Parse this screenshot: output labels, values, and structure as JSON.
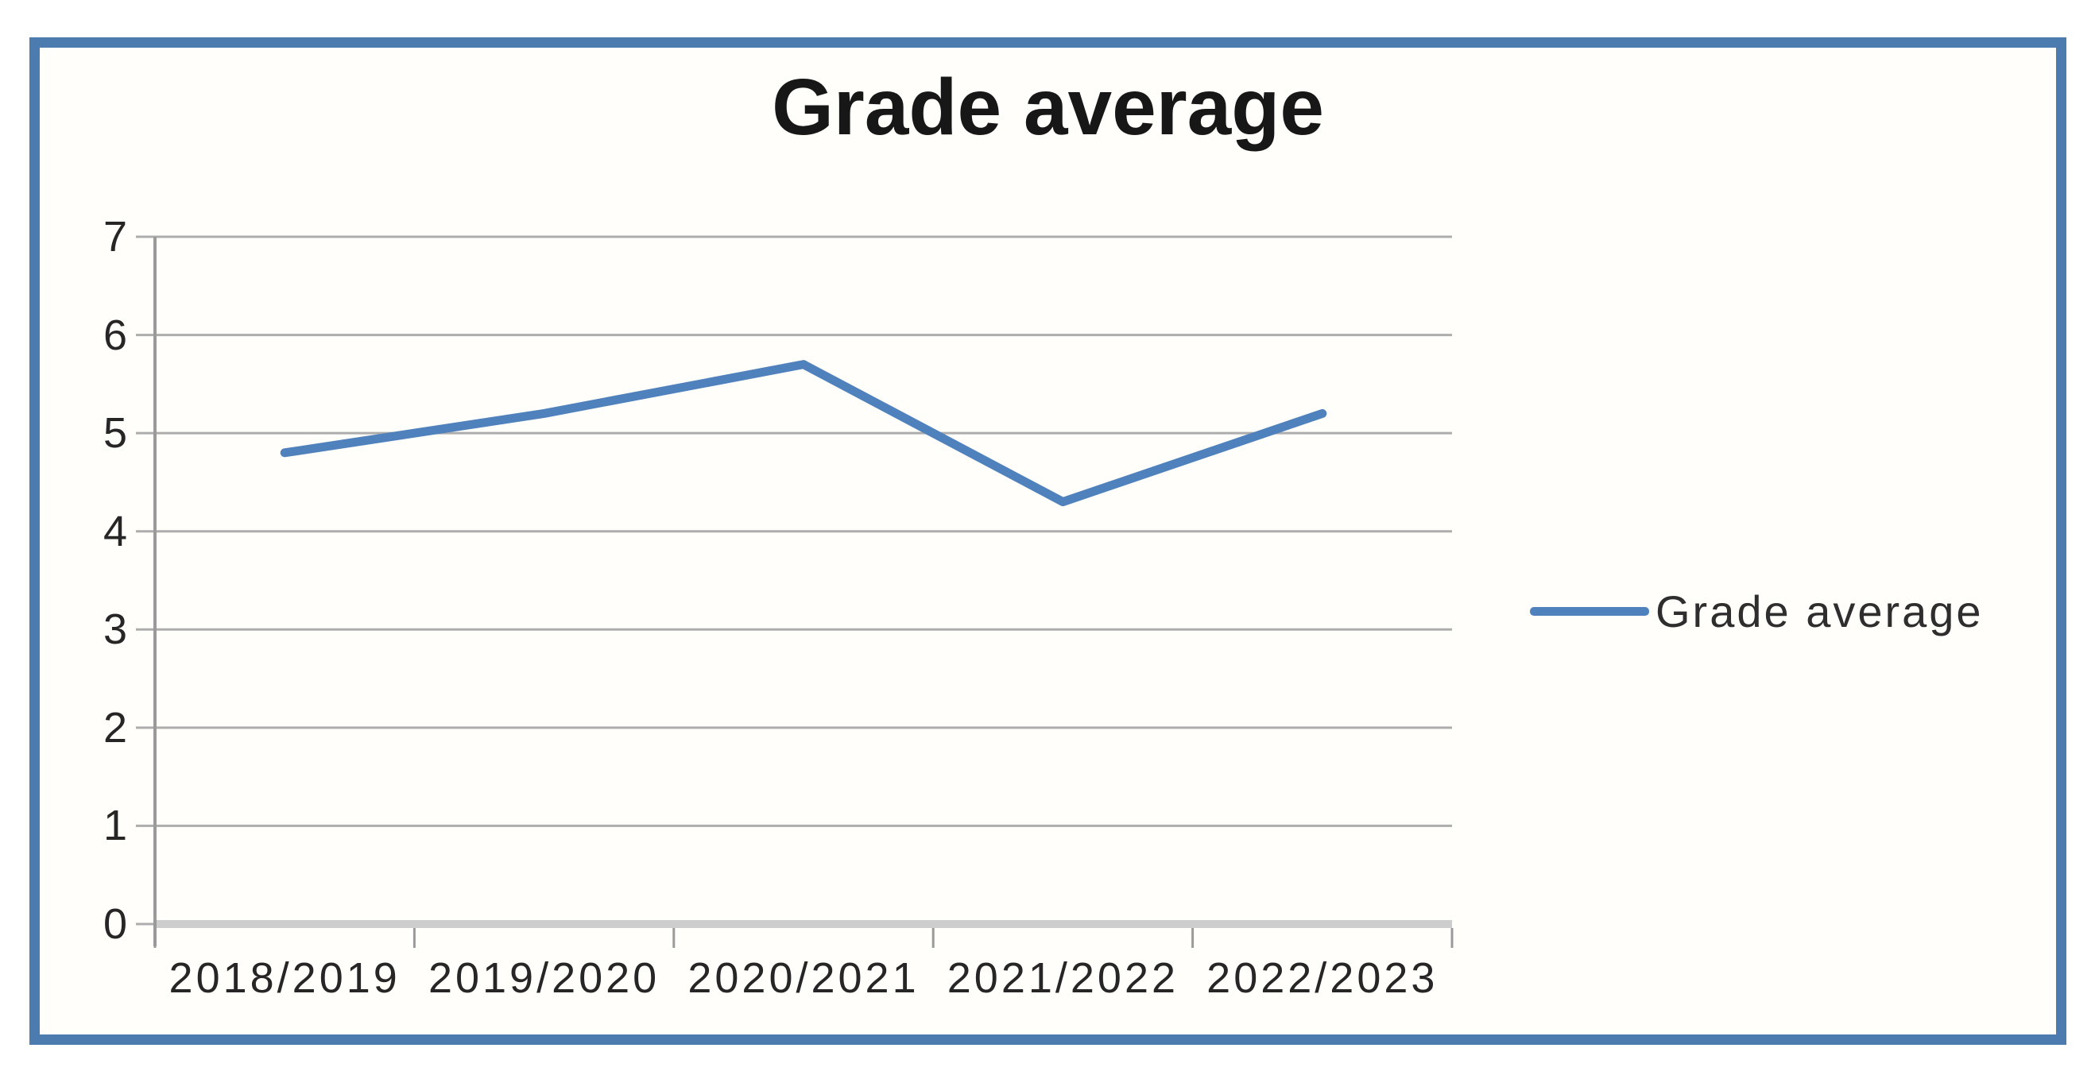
{
  "chart_data": {
    "type": "line",
    "title": "Grade average",
    "categories": [
      "2018/2019",
      "2019/2020",
      "2020/2021",
      "2021/2022",
      "2022/2023"
    ],
    "series": [
      {
        "name": "Grade average",
        "color": "#4F81BD",
        "values": [
          4.8,
          5.2,
          5.7,
          4.3,
          5.2
        ]
      }
    ],
    "xlabel": "",
    "ylabel": "",
    "ylim": [
      0,
      7
    ],
    "y_ticks": [
      0,
      1,
      2,
      3,
      4,
      5,
      6,
      7
    ],
    "grid": true,
    "legend_position": "right",
    "legend_label": "Grade average"
  },
  "colors": {
    "series_line": "#4F81BD",
    "frame_border": "#4C7BB0",
    "gridline": "#ADADAD",
    "axis_line": "#9A9A9A",
    "zero_axis_bar": "#CDCDCD",
    "label_text": "#262626",
    "title_text": "#171717",
    "chart_background": "#FFFEFA"
  }
}
